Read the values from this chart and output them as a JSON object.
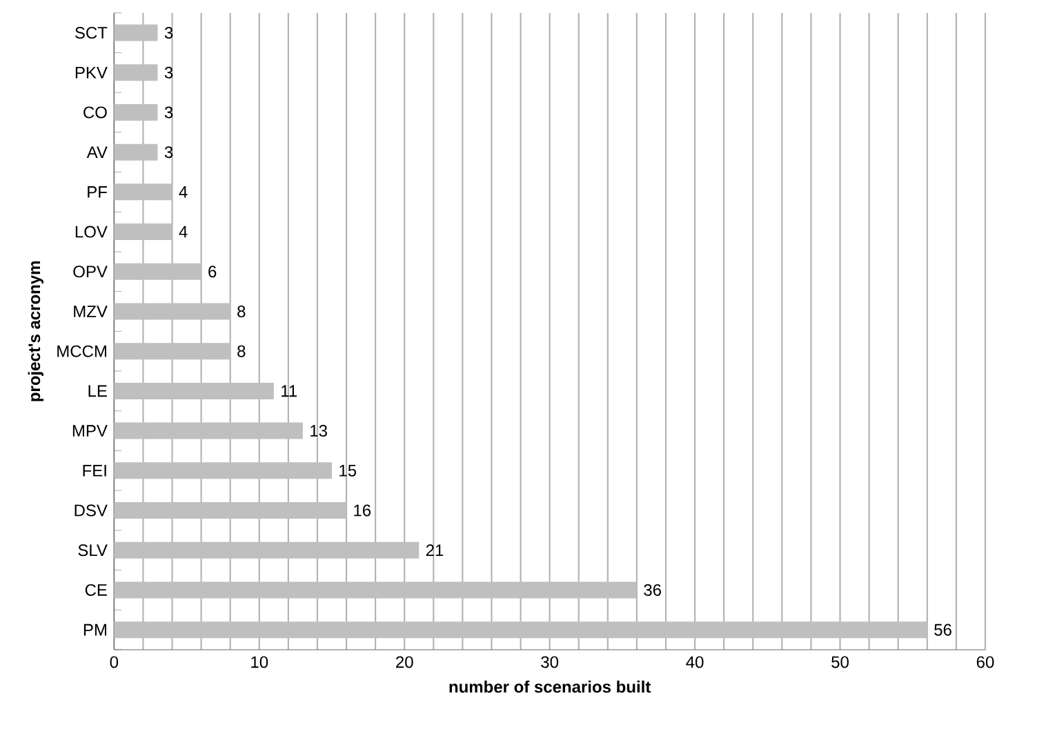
{
  "chart_data": {
    "type": "bar",
    "orientation": "horizontal",
    "xlabel": "number of scenarios built",
    "ylabel": "project's acronym",
    "categories": [
      "SCT",
      "PKV",
      "CO",
      "AV",
      "PF",
      "LOV",
      "OPV",
      "MZV",
      "MCCM",
      "LE",
      "MPV",
      "FEI",
      "DSV",
      "SLV",
      "CE",
      "PM"
    ],
    "values": [
      3,
      3,
      3,
      3,
      4,
      4,
      6,
      8,
      8,
      11,
      13,
      15,
      16,
      21,
      36,
      56
    ],
    "color": "#bfbfbf",
    "data_labels": true,
    "grid": "x",
    "xlim": [
      0,
      60
    ],
    "xticks": [
      0,
      {
        "value": 2,
        "label": null
      },
      {
        "value": 4,
        "label": null
      },
      {
        "value": 6,
        "label": null
      },
      {
        "value": 8,
        "label": null
      },
      10,
      {
        "value": 12,
        "label": null
      },
      {
        "value": 14,
        "label": null
      },
      {
        "value": 16,
        "label": null
      },
      {
        "value": 18,
        "label": null
      },
      20,
      {
        "value": 22,
        "label": null
      },
      {
        "value": 24,
        "label": null
      },
      {
        "value": 26,
        "label": null
      },
      {
        "value": 28,
        "label": null
      },
      30,
      {
        "value": 32,
        "label": null
      },
      {
        "value": 34,
        "label": null
      },
      {
        "value": 36,
        "label": null
      },
      {
        "value": 38,
        "label": null
      },
      40,
      {
        "value": 42,
        "label": null
      },
      {
        "value": 44,
        "label": null
      },
      {
        "value": 46,
        "label": null
      },
      {
        "value": 48,
        "label": null
      },
      50,
      {
        "value": 52,
        "label": null
      },
      {
        "value": 54,
        "label": null
      },
      {
        "value": 56,
        "label": null
      },
      {
        "value": 58,
        "label": null
      },
      60
    ]
  }
}
